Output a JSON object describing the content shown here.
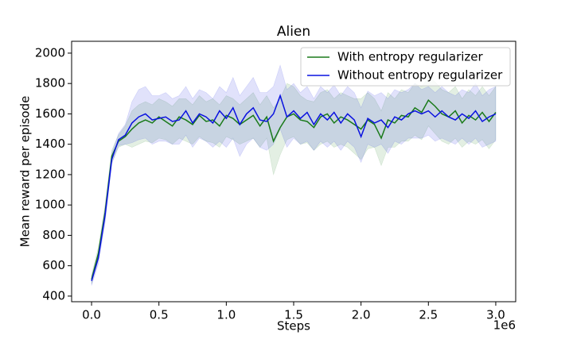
{
  "chart_data": {
    "type": "line",
    "title": "Alien",
    "xlabel": "Steps",
    "ylabel": "Mean reward per episode",
    "x_offset_label": "1e6",
    "x": [
      0,
      0.05,
      0.1,
      0.15,
      0.2,
      0.25,
      0.3,
      0.35,
      0.4,
      0.45,
      0.5,
      0.55,
      0.6,
      0.65,
      0.7,
      0.75,
      0.8,
      0.85,
      0.9,
      0.95,
      1.0,
      1.05,
      1.1,
      1.15,
      1.2,
      1.25,
      1.3,
      1.35,
      1.4,
      1.45,
      1.5,
      1.55,
      1.6,
      1.65,
      1.7,
      1.75,
      1.8,
      1.85,
      1.9,
      1.95,
      2.0,
      2.05,
      2.1,
      2.15,
      2.2,
      2.25,
      2.3,
      2.35,
      2.4,
      2.45,
      2.5,
      2.55,
      2.6,
      2.65,
      2.7,
      2.75,
      2.8,
      2.85,
      2.9,
      2.95,
      3.0
    ],
    "series": [
      {
        "name": "With entropy regularizer",
        "color": "#1a7a1a",
        "values": [
          510,
          680,
          950,
          1320,
          1420,
          1450,
          1500,
          1540,
          1560,
          1540,
          1580,
          1550,
          1520,
          1580,
          1560,
          1530,
          1590,
          1550,
          1560,
          1520,
          1590,
          1570,
          1530,
          1560,
          1590,
          1520,
          1580,
          1420,
          1510,
          1580,
          1600,
          1560,
          1550,
          1510,
          1580,
          1600,
          1540,
          1580,
          1560,
          1530,
          1500,
          1560,
          1530,
          1440,
          1560,
          1540,
          1590,
          1580,
          1640,
          1610,
          1690,
          1650,
          1600,
          1580,
          1620,
          1540,
          1590,
          1560,
          1610,
          1550,
          1610
        ],
        "lower": [
          480,
          640,
          900,
          1280,
          1380,
          1400,
          1380,
          1400,
          1420,
          1410,
          1440,
          1430,
          1400,
          1440,
          1420,
          1400,
          1450,
          1420,
          1410,
          1380,
          1450,
          1430,
          1400,
          1420,
          1440,
          1380,
          1440,
          1200,
          1330,
          1430,
          1450,
          1400,
          1410,
          1360,
          1400,
          1420,
          1380,
          1400,
          1380,
          1340,
          1300,
          1370,
          1380,
          1260,
          1380,
          1380,
          1420,
          1420,
          1460,
          1430,
          1520,
          1470,
          1420,
          1400,
          1440,
          1380,
          1420,
          1400,
          1430,
          1370,
          1430
        ],
        "upper": [
          540,
          720,
          1000,
          1360,
          1460,
          1520,
          1620,
          1660,
          1680,
          1660,
          1700,
          1680,
          1650,
          1700,
          1700,
          1660,
          1720,
          1680,
          1700,
          1660,
          1720,
          1700,
          1660,
          1700,
          1740,
          1660,
          1720,
          1640,
          1700,
          1800,
          1780,
          1720,
          1690,
          1680,
          1740,
          1760,
          1700,
          1740,
          1720,
          1700,
          1700,
          1740,
          1700,
          1620,
          1740,
          1700,
          1760,
          1740,
          1800,
          1780,
          1840,
          1810,
          1760,
          1740,
          1780,
          1700,
          1760,
          1720,
          1780,
          1720,
          1780
        ]
      },
      {
        "name": "Without entropy regularizer",
        "color": "#0a12e0",
        "values": [
          500,
          650,
          930,
          1300,
          1430,
          1460,
          1540,
          1580,
          1600,
          1560,
          1570,
          1580,
          1550,
          1560,
          1620,
          1540,
          1600,
          1580,
          1540,
          1620,
          1570,
          1640,
          1530,
          1600,
          1640,
          1560,
          1550,
          1600,
          1720,
          1580,
          1620,
          1570,
          1610,
          1530,
          1600,
          1560,
          1610,
          1540,
          1600,
          1560,
          1450,
          1570,
          1540,
          1560,
          1510,
          1580,
          1560,
          1600,
          1620,
          1600,
          1620,
          1580,
          1620,
          1580,
          1560,
          1600,
          1570,
          1620,
          1550,
          1580,
          1600
        ],
        "lower": [
          470,
          610,
          880,
          1270,
          1390,
          1400,
          1410,
          1430,
          1440,
          1400,
          1420,
          1420,
          1400,
          1400,
          1460,
          1380,
          1440,
          1420,
          1380,
          1420,
          1380,
          1440,
          1320,
          1400,
          1440,
          1380,
          1360,
          1400,
          1500,
          1380,
          1440,
          1400,
          1420,
          1360,
          1420,
          1380,
          1420,
          1360,
          1420,
          1380,
          1280,
          1400,
          1380,
          1400,
          1340,
          1420,
          1400,
          1440,
          1440,
          1440,
          1460,
          1420,
          1440,
          1420,
          1400,
          1440,
          1400,
          1440,
          1380,
          1400,
          1420
        ],
        "upper": [
          530,
          690,
          980,
          1340,
          1470,
          1530,
          1680,
          1760,
          1780,
          1720,
          1720,
          1740,
          1700,
          1720,
          1780,
          1700,
          1760,
          1740,
          1700,
          1780,
          1740,
          1840,
          1720,
          1780,
          1840,
          1740,
          1740,
          1780,
          1920,
          1760,
          1800,
          1740,
          1780,
          1700,
          1780,
          1740,
          1790,
          1720,
          1780,
          1740,
          1640,
          1750,
          1720,
          1740,
          1700,
          1760,
          1740,
          1760,
          1800,
          1760,
          1780,
          1740,
          1780,
          1740,
          1720,
          1760,
          1740,
          1800,
          1720,
          1760,
          1780
        ]
      }
    ],
    "xlim": [
      -0.148,
      3.148
    ],
    "xticks": [
      {
        "value": 0,
        "label": "0.0"
      },
      0.5,
      {
        "value": 1,
        "label": "1.0"
      },
      1.5,
      {
        "value": 2,
        "label": "2.0"
      },
      2.5,
      {
        "value": 3,
        "label": "3.0"
      }
    ],
    "ylim": [
      363,
      2078
    ],
    "yticks": [
      400,
      600,
      800,
      1000,
      1200,
      1400,
      1600,
      1800,
      2000
    ],
    "grid": false,
    "legend": "upper right"
  }
}
